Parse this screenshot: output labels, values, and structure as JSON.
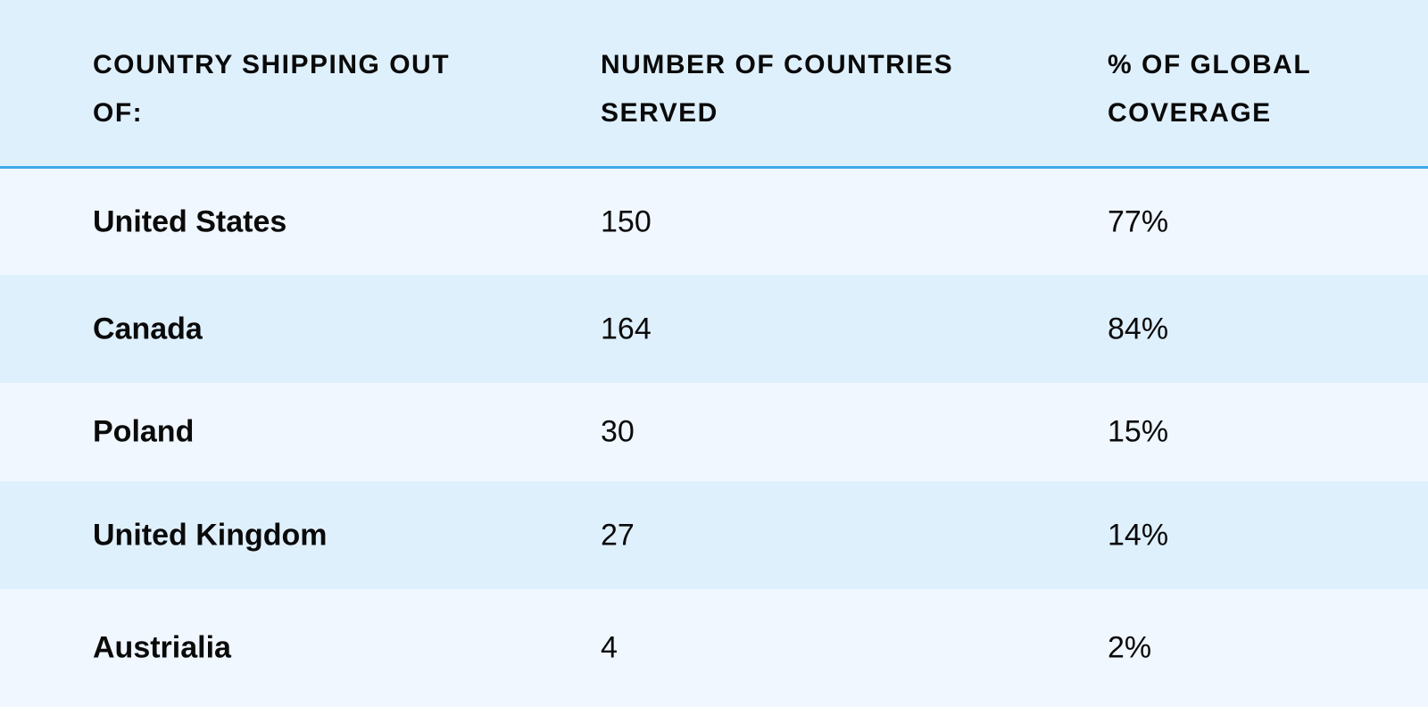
{
  "table": {
    "headers": [
      "COUNTRY SHIPPING OUT OF:",
      "NUMBER OF COUNTRIES SERVED",
      "% OF GLOBAL COVERAGE"
    ],
    "rows": [
      {
        "country": "United States",
        "count": "150",
        "coverage": "77%"
      },
      {
        "country": "Canada",
        "count": "164",
        "coverage": "84%"
      },
      {
        "country": "Poland",
        "count": "30",
        "coverage": "15%"
      },
      {
        "country": "United Kingdom",
        "count": "27",
        "coverage": "14%"
      },
      {
        "country": "Austrialia",
        "count": "4",
        "coverage": "2%"
      }
    ]
  },
  "colors": {
    "header_bg": "#dff0fd",
    "row_light": "#f0f7fe",
    "row_dark": "#dff0fd",
    "divider": "#40a9ea",
    "text": "#0a0a0a"
  }
}
